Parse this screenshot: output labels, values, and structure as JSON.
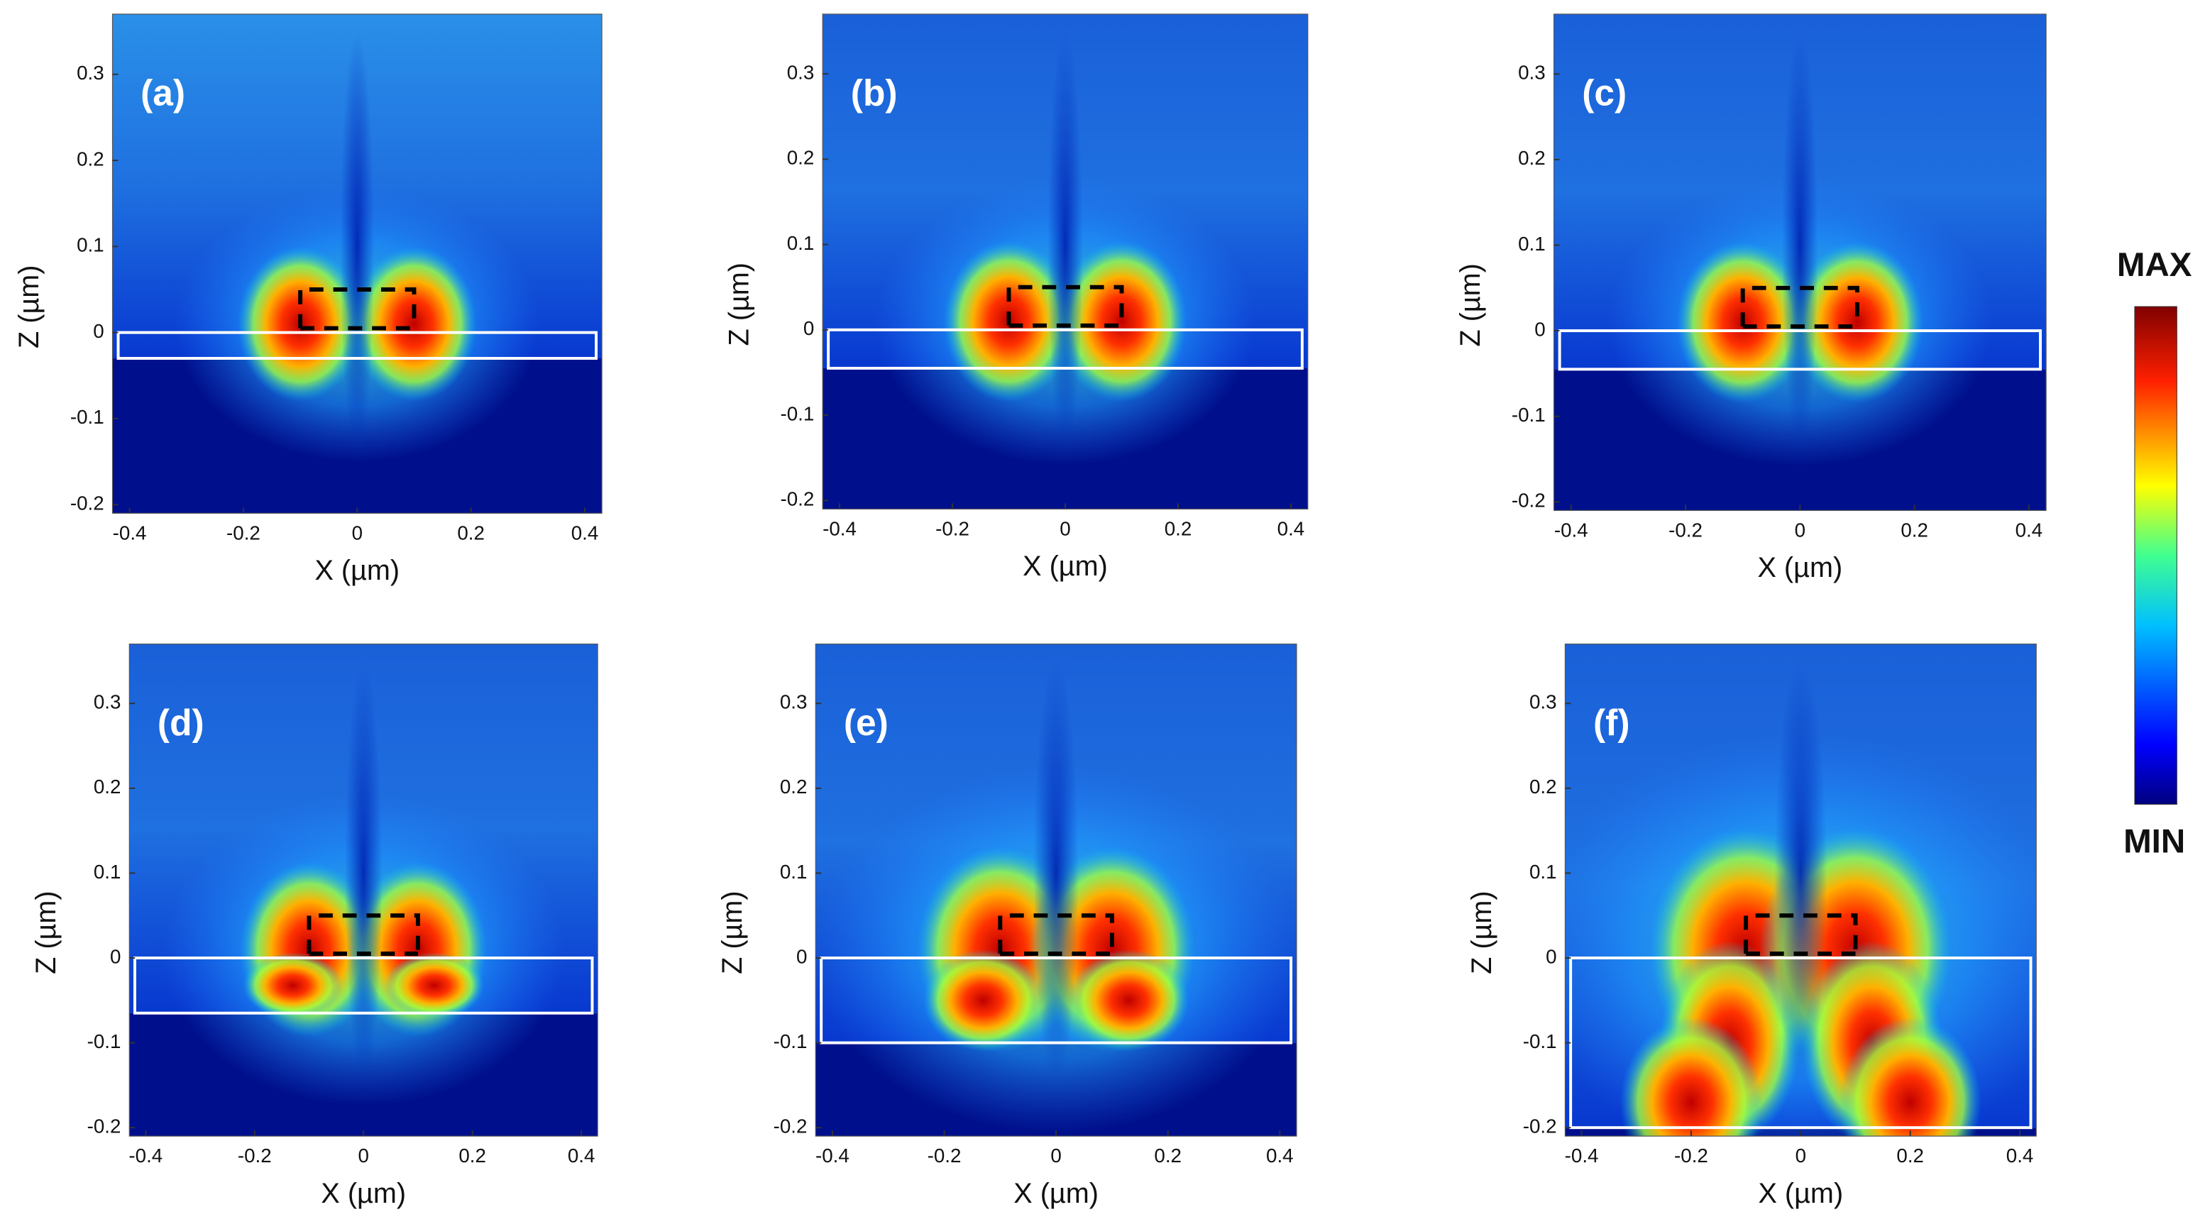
{
  "chart_data": [
    {
      "type": "heatmap",
      "label": "(a)",
      "xlabel": "X (µm)",
      "ylabel": "Z (µm)",
      "xlim": [
        -0.43,
        0.43
      ],
      "ylim": [
        -0.21,
        0.37
      ],
      "xticks": [
        -0.4,
        -0.2,
        0,
        0.2,
        0.4
      ],
      "yticks": [
        -0.2,
        -0.1,
        0,
        0.1,
        0.2,
        0.3
      ]
    },
    {
      "type": "heatmap",
      "label": "(b)",
      "xlabel": "X (µm)",
      "ylabel": "Z (µm)",
      "xlim": [
        -0.43,
        0.43
      ],
      "ylim": [
        -0.21,
        0.37
      ],
      "xticks": [
        -0.4,
        -0.2,
        0,
        0.2,
        0.4
      ],
      "yticks": [
        -0.2,
        -0.1,
        0,
        0.1,
        0.2,
        0.3
      ]
    },
    {
      "type": "heatmap",
      "label": "(c)",
      "xlabel": "X (µm)",
      "ylabel": "Z (µm)",
      "xlim": [
        -0.43,
        0.43
      ],
      "ylim": [
        -0.21,
        0.37
      ],
      "xticks": [
        -0.4,
        -0.2,
        0,
        0.2,
        0.4
      ],
      "yticks": [
        -0.2,
        -0.1,
        0,
        0.1,
        0.2,
        0.3
      ]
    },
    {
      "type": "heatmap",
      "label": "(d)",
      "xlabel": "X (µm)",
      "ylabel": "Z (µm)",
      "xlim": [
        -0.43,
        0.43
      ],
      "ylim": [
        -0.21,
        0.37
      ],
      "xticks": [
        -0.4,
        -0.2,
        0,
        0.2,
        0.4
      ],
      "yticks": [
        -0.2,
        -0.1,
        0,
        0.1,
        0.2,
        0.3
      ]
    },
    {
      "type": "heatmap",
      "label": "(e)",
      "xlabel": "X (µm)",
      "ylabel": "Z (µm)",
      "xlim": [
        -0.43,
        0.43
      ],
      "ylim": [
        -0.21,
        0.37
      ],
      "xticks": [
        -0.4,
        -0.2,
        0,
        0.2,
        0.4
      ],
      "yticks": [
        -0.2,
        -0.1,
        0,
        0.1,
        0.2,
        0.3
      ]
    },
    {
      "type": "heatmap",
      "label": "(f)",
      "xlabel": "X (µm)",
      "ylabel": "Z (µm)",
      "xlim": [
        -0.43,
        0.43
      ],
      "ylim": [
        -0.21,
        0.37
      ],
      "xticks": [
        -0.4,
        -0.2,
        0,
        0.2,
        0.4
      ],
      "yticks": [
        -0.2,
        -0.1,
        0,
        0.1,
        0.2,
        0.3
      ]
    }
  ],
  "colorbar": {
    "max_label": "MAX",
    "min_label": "MIN"
  }
}
